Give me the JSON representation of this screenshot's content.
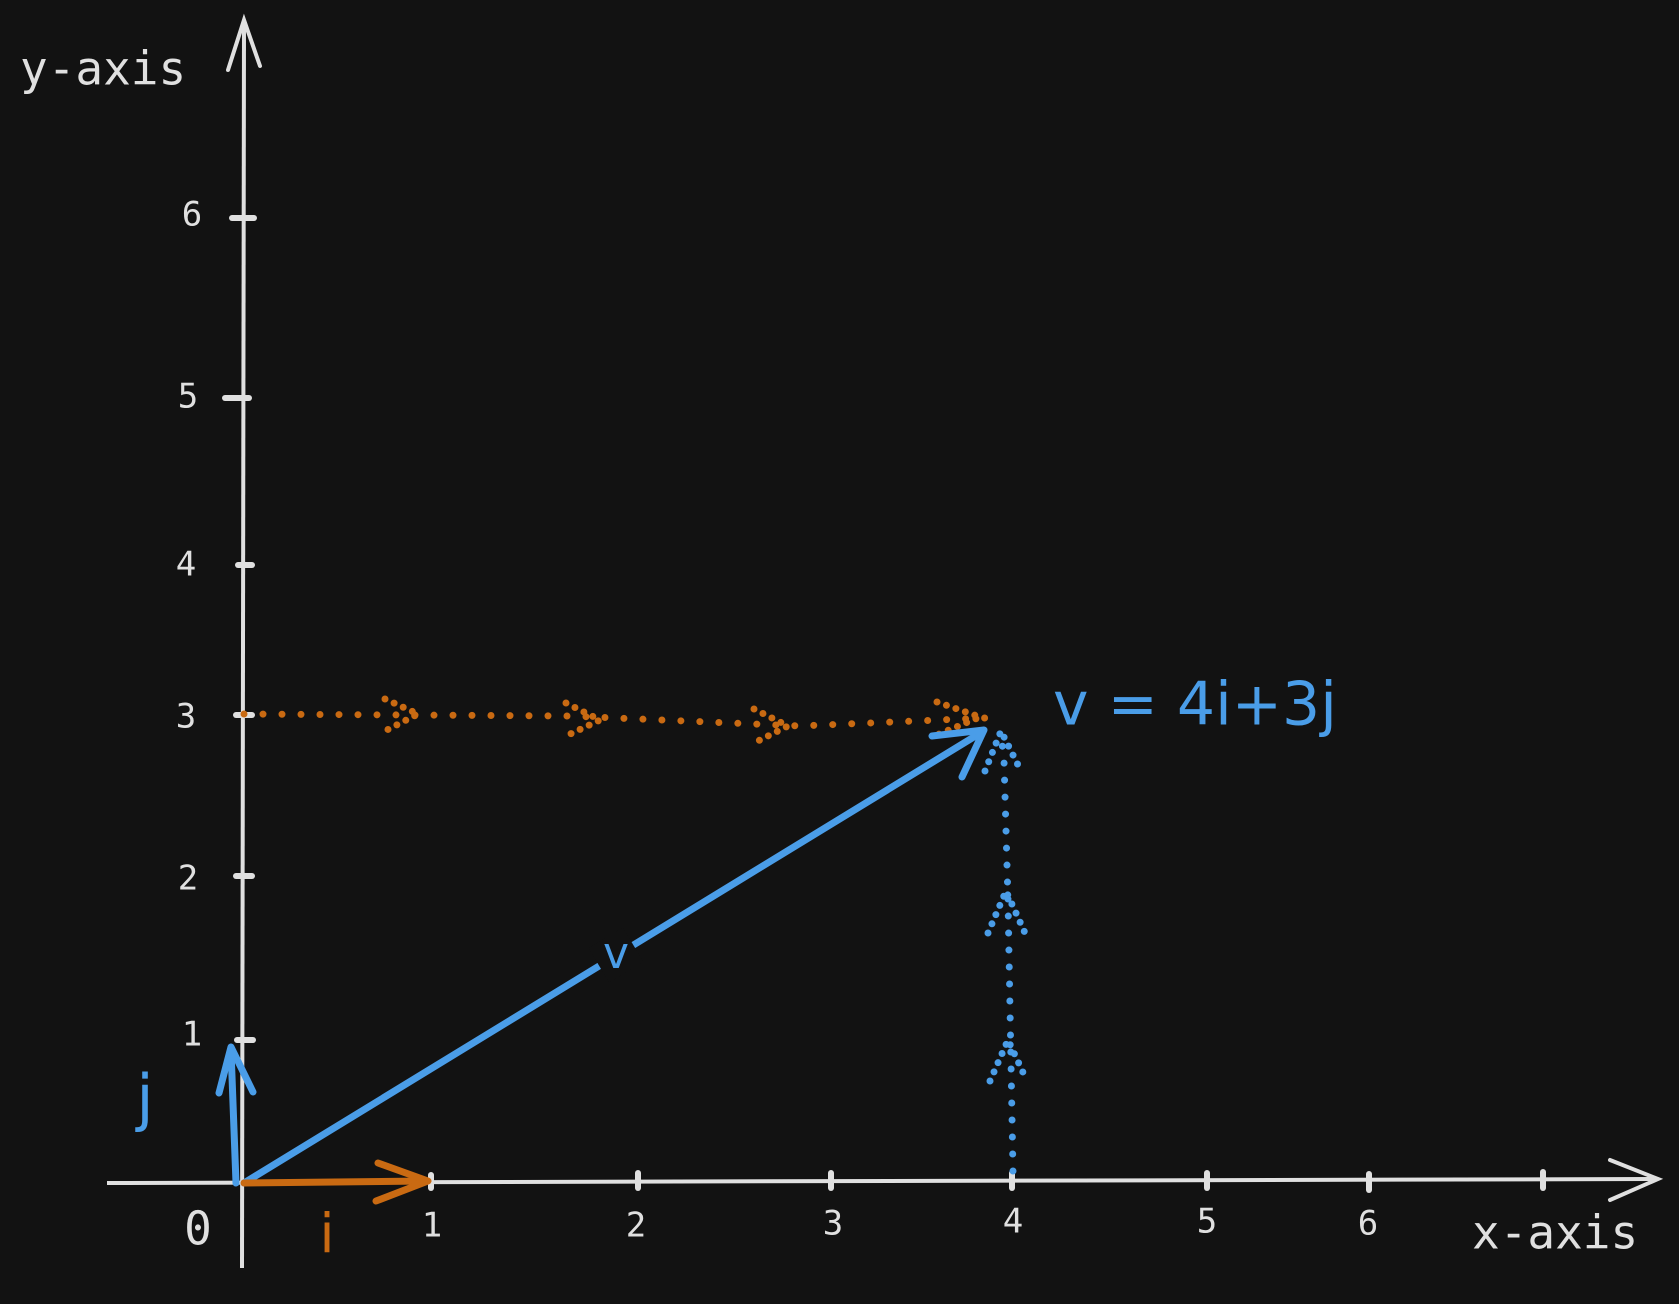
{
  "axes": {
    "x_label": "x-axis",
    "y_label": "y-axis",
    "origin": "0",
    "x_ticks": [
      "1",
      "2",
      "3",
      "4",
      "5",
      "6"
    ],
    "y_ticks": [
      "1",
      "2",
      "3",
      "4",
      "5",
      "6"
    ]
  },
  "vectors": {
    "i_label": "i",
    "j_label": "j",
    "v_label": "v",
    "equation": "v = 4i+3j"
  }
}
